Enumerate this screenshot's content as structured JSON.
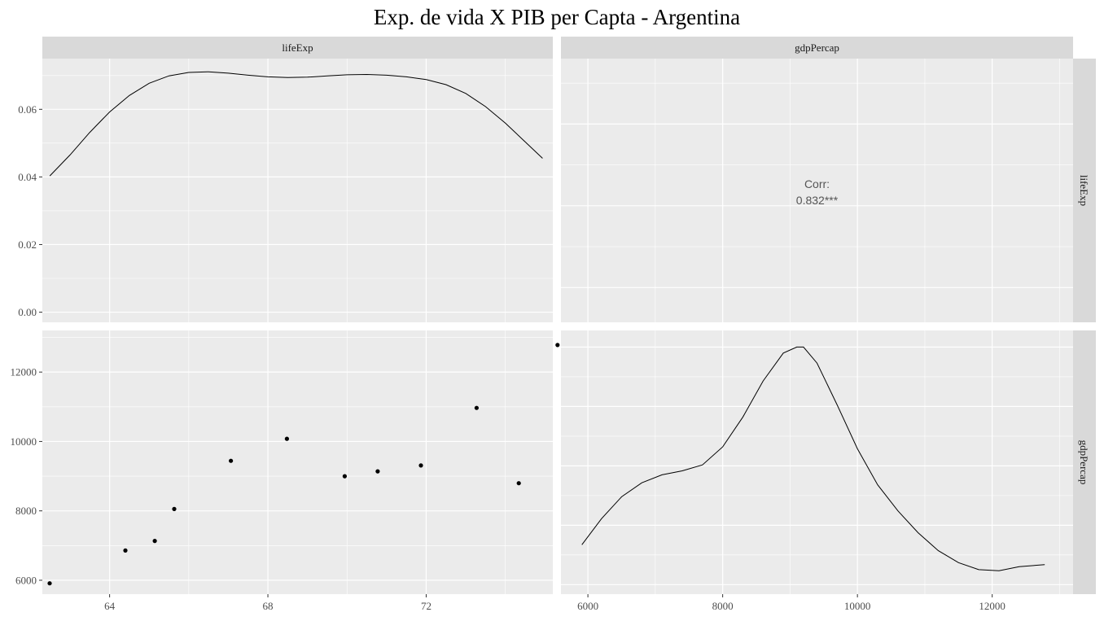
{
  "chart_data": {
    "type": "scatter",
    "title": "Exp. de vida X PIB per Capta - Argentina",
    "variables": [
      "lifeExp",
      "gdpPercap"
    ],
    "colors": {
      "panel_bg": "#ebebeb",
      "strip_bg": "#d9d9d9",
      "grid": "#ffffff",
      "mark": "#000000",
      "corr_text": "#555555",
      "tick_text": "#4d4d4d"
    },
    "lifeExp_range": [
      62.3,
      75.2
    ],
    "gdpPercap_range": [
      5600,
      13200
    ],
    "density_range": [
      -0.003,
      0.075
    ],
    "density_ticks": [
      0.0,
      0.02,
      0.04,
      0.06
    ],
    "density_tick_labels": [
      "0.00",
      "0.02",
      "0.04",
      "0.06"
    ],
    "lifeExp_ticks": [
      64,
      68,
      72
    ],
    "gdpPercap_ticks": [
      6000,
      8000,
      10000,
      12000
    ],
    "gdpPercap_tick_labels_y": [
      "6000",
      "8000",
      "10000",
      "12000"
    ],
    "gdpPercap_tick_labels_x": [
      "6000",
      "8000",
      "10000",
      "12000"
    ],
    "lifeExp_density": {
      "x": [
        62.49,
        63.0,
        63.5,
        64.0,
        64.5,
        65.0,
        65.5,
        66.0,
        66.5,
        67.0,
        67.5,
        68.0,
        68.5,
        69.0,
        69.5,
        70.0,
        70.5,
        71.0,
        71.5,
        72.0,
        72.5,
        73.0,
        73.5,
        74.0,
        74.5,
        74.94
      ],
      "y": [
        0.0403,
        0.0465,
        0.0532,
        0.0592,
        0.0641,
        0.0677,
        0.0699,
        0.0709,
        0.0711,
        0.0707,
        0.0701,
        0.0696,
        0.0694,
        0.0695,
        0.0699,
        0.0702,
        0.0703,
        0.0701,
        0.0696,
        0.0688,
        0.0673,
        0.0647,
        0.0608,
        0.0559,
        0.0504,
        0.0455
      ]
    },
    "gdpPercap_density": {
      "x": [
        5911,
        6200,
        6500,
        6800,
        7100,
        7400,
        7700,
        8000,
        8300,
        8600,
        8900,
        9100,
        9200,
        9400,
        9700,
        10000,
        10300,
        10600,
        10900,
        11200,
        11500,
        11800,
        12100,
        12400,
        12779
      ],
      "y": [
        0.2,
        0.33,
        0.44,
        0.51,
        0.55,
        0.57,
        0.6,
        0.69,
        0.84,
        1.02,
        1.16,
        1.19,
        1.19,
        1.11,
        0.9,
        0.68,
        0.5,
        0.37,
        0.26,
        0.17,
        0.11,
        0.075,
        0.07,
        0.09,
        0.1
      ]
    },
    "points": [
      {
        "lifeExp": 62.485,
        "gdpPercap": 5911
      },
      {
        "lifeExp": 64.399,
        "gdpPercap": 6857
      },
      {
        "lifeExp": 65.142,
        "gdpPercap": 7133
      },
      {
        "lifeExp": 65.634,
        "gdpPercap": 8053
      },
      {
        "lifeExp": 67.065,
        "gdpPercap": 9443
      },
      {
        "lifeExp": 68.481,
        "gdpPercap": 10079
      },
      {
        "lifeExp": 69.942,
        "gdpPercap": 8998
      },
      {
        "lifeExp": 70.774,
        "gdpPercap": 9140
      },
      {
        "lifeExp": 71.868,
        "gdpPercap": 9308
      },
      {
        "lifeExp": 73.275,
        "gdpPercap": 10967
      },
      {
        "lifeExp": 74.34,
        "gdpPercap": 8798
      },
      {
        "lifeExp": 75.32,
        "gdpPercap": 12779
      }
    ],
    "correlation": {
      "label": "Corr:",
      "value": "0.832***"
    },
    "grid": true,
    "legend": "none"
  }
}
